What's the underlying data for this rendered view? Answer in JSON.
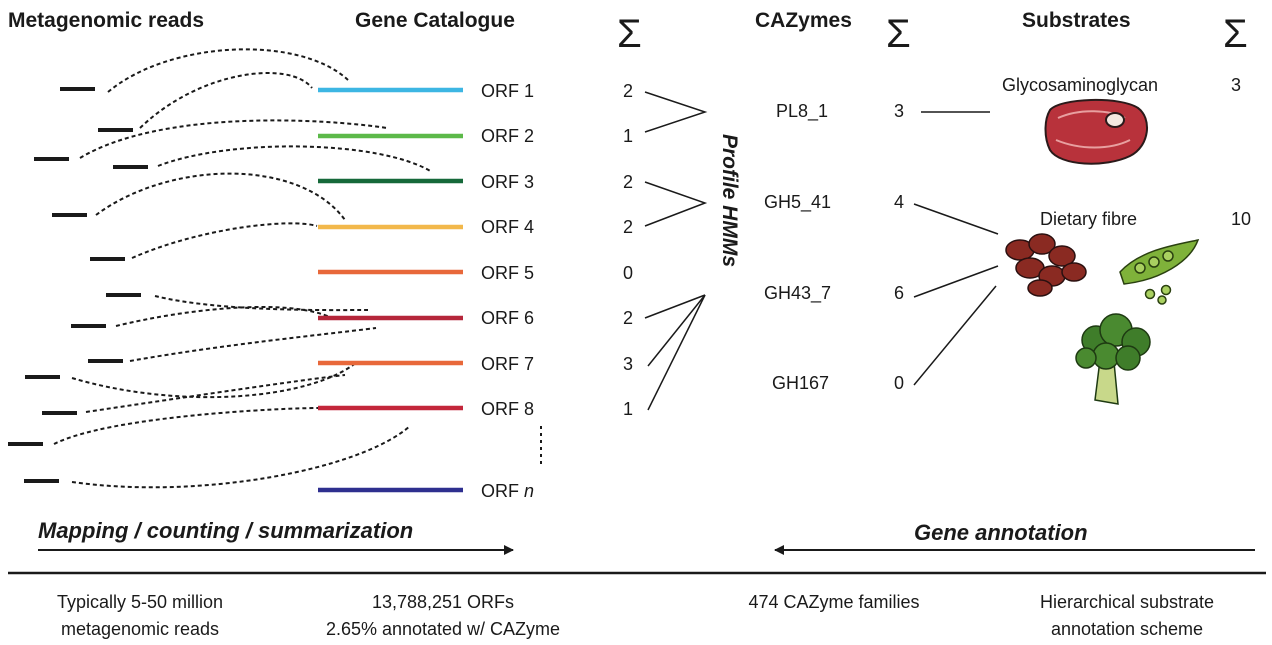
{
  "headers": {
    "reads": "Metagenomic reads",
    "catalogue": "Gene Catalogue",
    "cazymes": "CAZymes",
    "substrates": "Substrates",
    "sum_symbol": "Σ"
  },
  "orfs": [
    {
      "label": "ORF 1",
      "count": "2",
      "color": "#3db6e3"
    },
    {
      "label": "ORF 2",
      "count": "1",
      "color": "#5cb949"
    },
    {
      "label": "ORF 3",
      "count": "2",
      "color": "#16693a"
    },
    {
      "label": "ORF 4",
      "count": "2",
      "color": "#f2b84b"
    },
    {
      "label": "ORF 5",
      "count": "0",
      "color": "#e8683a"
    },
    {
      "label": "ORF 6",
      "count": "2",
      "color": "#b5263a"
    },
    {
      "label": "ORF 7",
      "count": "3",
      "color": "#e8683a"
    },
    {
      "label": "ORF 8",
      "count": "1",
      "color": "#c3263a"
    }
  ],
  "orf_n": {
    "prefix": "ORF ",
    "suffix": "n",
    "color": "#2e2f8f"
  },
  "hmm_label": "Profile HMMs",
  "cazymes": [
    {
      "name": "PL8_1",
      "count": "3"
    },
    {
      "name": "GH5_41",
      "count": "4"
    },
    {
      "name": "GH43_7",
      "count": "6"
    },
    {
      "name": "GH167",
      "count": "0"
    }
  ],
  "substrates": [
    {
      "name": "Glycosaminoglycan",
      "count": "3",
      "icon": "meat-steak-icon"
    },
    {
      "name": "Dietary fibre",
      "count": "10",
      "icon": "beans-peas-broccoli-icon"
    }
  ],
  "arrows": {
    "mapping": "Mapping / counting / summarization",
    "annotation": "Gene annotation"
  },
  "footer": {
    "reads_line1": "Typically 5-50 million",
    "reads_line2": "metagenomic reads",
    "catalogue_line1": "13,788,251 ORFs",
    "catalogue_line2": "2.65% annotated w/ CAZyme",
    "cazymes_line1": "474 CAZyme families",
    "substrates_line1": "Hierarchical substrate",
    "substrates_line2": "annotation scheme"
  },
  "colors": {
    "meat": "#b8323b",
    "beans": "#8a2a22",
    "peas": "#7fb23a",
    "broccoli": "#3f7d2a"
  }
}
